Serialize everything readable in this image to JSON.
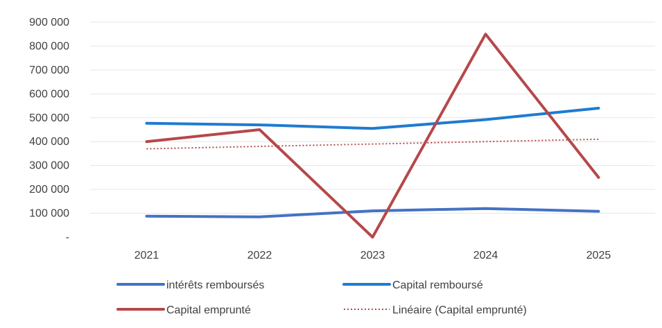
{
  "chart_data": {
    "type": "line",
    "title": "",
    "xlabel": "",
    "ylabel": "",
    "categories": [
      "2021",
      "2022",
      "2023",
      "2024",
      "2025"
    ],
    "ylim": [
      0,
      900000
    ],
    "yticks": [
      0,
      100000,
      200000,
      300000,
      400000,
      500000,
      600000,
      700000,
      800000,
      900000
    ],
    "ytick_labels": [
      "-",
      "100 000",
      "200 000",
      "300 000",
      "400 000",
      "500 000",
      "600 000",
      "700 000",
      "800 000",
      "900 000"
    ],
    "grid": "horizontal",
    "legend_position": "bottom",
    "series": [
      {
        "name": "intérêts remboursés",
        "values": [
          88000,
          85000,
          110000,
          120000,
          108000
        ],
        "color": "#4472C4",
        "style": "solid"
      },
      {
        "name": "Capital remboursé",
        "values": [
          477000,
          470000,
          455000,
          492000,
          540000
        ],
        "color": "#1F7BD0",
        "style": "solid"
      },
      {
        "name": "Capital emprunté",
        "values": [
          400000,
          450000,
          0,
          850000,
          250000
        ],
        "color": "#B5484A",
        "style": "solid"
      },
      {
        "name": "Linéaire (Capital emprunté)",
        "values": [
          370000,
          380000,
          390000,
          400000,
          410000
        ],
        "color": "#B5484A",
        "style": "dotted"
      }
    ]
  }
}
